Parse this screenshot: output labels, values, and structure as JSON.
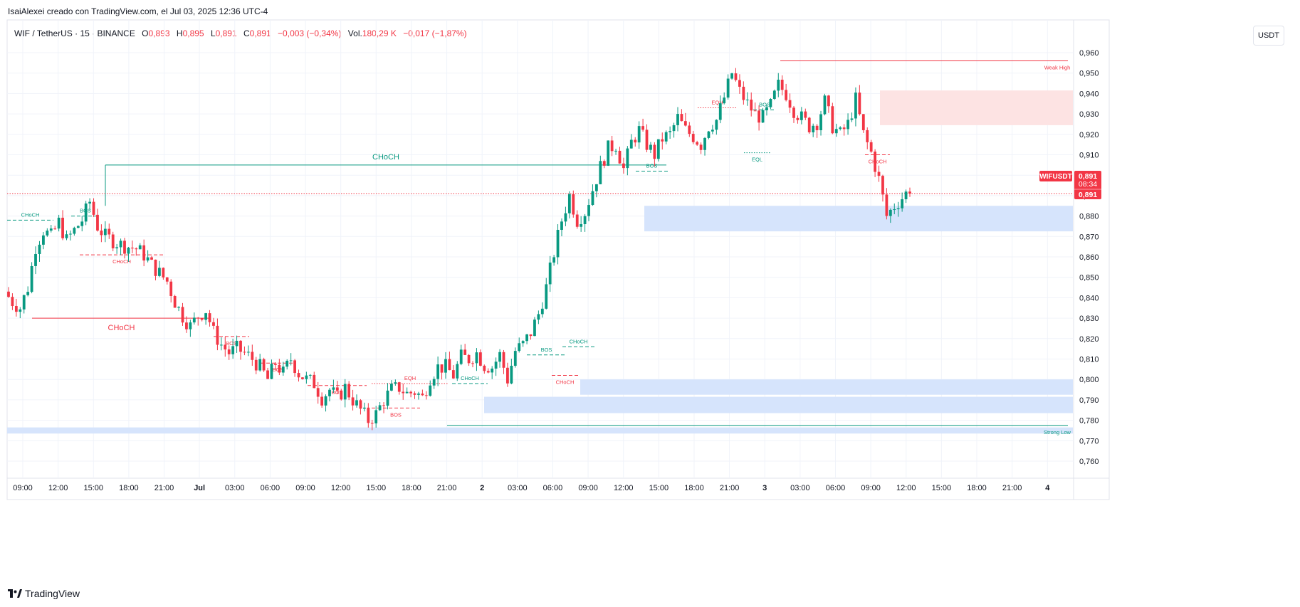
{
  "attribution": "IsaiAlexei creado con TradingView.com, el Jul 03, 2025 12:36 UTC-4",
  "legend": {
    "symbol": "WIF / TetherUS · 15 · BINANCE",
    "open_label": "O",
    "open": "0,893",
    "high_label": "H",
    "high": "0,895",
    "low_label": "L",
    "low": "0,891",
    "close_label": "C",
    "close": "0,891",
    "change": "−0,003 (−0,34%)",
    "vol_label": "Vol.",
    "vol": "180,29 K",
    "vol_change": "−0,017 (−1,87%)"
  },
  "unit_button": "USDT",
  "brand": "TradingView",
  "price_tag": {
    "symbol": "WIFUSDT",
    "price": "0,891",
    "countdown": "08:34",
    "price2": "0,891"
  },
  "colors": {
    "up": "#089981",
    "down": "#f23645",
    "demand": "#d6e4fc",
    "supply": "#fde3e3",
    "grid": "#f0f3fa"
  },
  "chart_data": {
    "type": "candlestick",
    "y_axis": {
      "min": 0.755,
      "max": 0.965,
      "ticks": [
        "0,760",
        "0,770",
        "0,780",
        "0,790",
        "0,800",
        "0,810",
        "0,820",
        "0,830",
        "0,840",
        "0,850",
        "0,860",
        "0,870",
        "0,880",
        "0,890",
        "0,900",
        "0,910",
        "0,920",
        "0,930",
        "0,940",
        "0,950",
        "0,960"
      ]
    },
    "x_axis": {
      "labels": [
        "09:00",
        "12:00",
        "15:00",
        "18:00",
        "21:00",
        "Jul",
        "03:00",
        "06:00",
        "09:00",
        "12:00",
        "15:00",
        "18:00",
        "21:00",
        "2",
        "03:00",
        "06:00",
        "09:00",
        "12:00",
        "15:00",
        "18:00",
        "21:00",
        "3",
        "03:00",
        "06:00",
        "09:00",
        "12:00",
        "15:00",
        "18:00",
        "21:00",
        "4"
      ]
    },
    "price_path": [
      [
        0,
        0.843
      ],
      [
        2,
        0.838
      ],
      [
        4,
        0.835
      ],
      [
        6,
        0.845
      ],
      [
        8,
        0.865
      ],
      [
        10,
        0.873
      ],
      [
        12,
        0.87
      ],
      [
        14,
        0.877
      ],
      [
        16,
        0.868
      ],
      [
        18,
        0.873
      ],
      [
        20,
        0.878
      ],
      [
        22,
        0.887
      ],
      [
        24,
        0.875
      ],
      [
        26,
        0.87
      ],
      [
        28,
        0.868
      ],
      [
        30,
        0.866
      ],
      [
        32,
        0.865
      ],
      [
        34,
        0.864
      ],
      [
        36,
        0.861
      ],
      [
        38,
        0.856
      ],
      [
        40,
        0.852
      ],
      [
        42,
        0.848
      ],
      [
        44,
        0.838
      ],
      [
        46,
        0.831
      ],
      [
        48,
        0.826
      ],
      [
        50,
        0.831
      ],
      [
        52,
        0.834
      ],
      [
        54,
        0.823
      ],
      [
        56,
        0.817
      ],
      [
        58,
        0.813
      ],
      [
        60,
        0.815
      ],
      [
        62,
        0.813
      ],
      [
        64,
        0.81
      ],
      [
        66,
        0.806
      ],
      [
        68,
        0.8
      ],
      [
        70,
        0.808
      ],
      [
        72,
        0.803
      ],
      [
        74,
        0.81
      ],
      [
        76,
        0.803
      ],
      [
        78,
        0.8
      ],
      [
        80,
        0.798
      ],
      [
        82,
        0.791
      ],
      [
        84,
        0.795
      ],
      [
        86,
        0.791
      ],
      [
        88,
        0.796
      ],
      [
        90,
        0.79
      ],
      [
        92,
        0.785
      ],
      [
        94,
        0.78
      ],
      [
        96,
        0.783
      ],
      [
        98,
        0.79
      ],
      [
        100,
        0.795
      ],
      [
        102,
        0.796
      ],
      [
        104,
        0.793
      ],
      [
        106,
        0.794
      ],
      [
        108,
        0.791
      ],
      [
        110,
        0.801
      ],
      [
        112,
        0.806
      ],
      [
        114,
        0.806
      ],
      [
        116,
        0.802
      ],
      [
        118,
        0.811
      ],
      [
        120,
        0.81
      ],
      [
        122,
        0.813
      ],
      [
        124,
        0.807
      ],
      [
        126,
        0.806
      ],
      [
        128,
        0.812
      ],
      [
        130,
        0.8
      ],
      [
        132,
        0.814
      ],
      [
        134,
        0.817
      ],
      [
        136,
        0.823
      ],
      [
        138,
        0.832
      ],
      [
        140,
        0.845
      ],
      [
        142,
        0.862
      ],
      [
        144,
        0.878
      ],
      [
        146,
        0.89
      ],
      [
        148,
        0.878
      ],
      [
        150,
        0.882
      ],
      [
        152,
        0.893
      ],
      [
        154,
        0.904
      ],
      [
        156,
        0.913
      ],
      [
        158,
        0.915
      ],
      [
        160,
        0.903
      ],
      [
        162,
        0.916
      ],
      [
        164,
        0.922
      ],
      [
        166,
        0.915
      ],
      [
        168,
        0.91
      ],
      [
        170,
        0.918
      ],
      [
        172,
        0.92
      ],
      [
        174,
        0.928
      ],
      [
        176,
        0.922
      ],
      [
        178,
        0.919
      ],
      [
        180,
        0.915
      ],
      [
        182,
        0.924
      ],
      [
        184,
        0.927
      ],
      [
        186,
        0.938
      ],
      [
        188,
        0.95
      ],
      [
        190,
        0.941
      ],
      [
        192,
        0.935
      ],
      [
        194,
        0.93
      ],
      [
        196,
        0.928
      ],
      [
        198,
        0.934
      ],
      [
        200,
        0.944
      ],
      [
        202,
        0.94
      ],
      [
        204,
        0.932
      ],
      [
        206,
        0.928
      ],
      [
        208,
        0.924
      ],
      [
        210,
        0.926
      ],
      [
        212,
        0.936
      ],
      [
        214,
        0.924
      ],
      [
        216,
        0.92
      ],
      [
        218,
        0.925
      ],
      [
        220,
        0.937
      ],
      [
        222,
        0.92
      ],
      [
        224,
        0.911
      ],
      [
        226,
        0.898
      ],
      [
        228,
        0.88
      ],
      [
        230,
        0.885
      ],
      [
        232,
        0.889
      ],
      [
        233,
        0.891
      ]
    ],
    "structures": [
      {
        "label": "CHoCH",
        "price": 0.905,
        "color": "up",
        "style": "solid",
        "x1": 148,
        "x2": 936,
        "label_size": "big"
      },
      {
        "label": "CHoCH",
        "price": 0.83,
        "color": "down",
        "style": "solid",
        "x1": 45,
        "x2": 296,
        "label_size": "big"
      },
      {
        "label": "CHoCH",
        "price": 0.878,
        "color": "up",
        "style": "dash",
        "x1": 10,
        "x2": 75,
        "label_size": "small"
      },
      {
        "label": "BOS",
        "price": 0.88,
        "color": "up",
        "style": "dash",
        "x1": 100,
        "x2": 140,
        "label_size": "small"
      },
      {
        "label": "CHoCH",
        "price": 0.861,
        "color": "down",
        "style": "dash",
        "x1": 112,
        "x2": 230,
        "label_size": "small"
      },
      {
        "label": "BOS",
        "price": 0.821,
        "color": "down",
        "style": "dash",
        "x1": 300,
        "x2": 350,
        "label_size": "small"
      },
      {
        "label": "BOS",
        "price": 0.808,
        "color": "down",
        "style": "dash",
        "x1": 366,
        "x2": 415,
        "label_size": "small"
      },
      {
        "label": "BOS",
        "price": 0.797,
        "color": "down",
        "style": "dash",
        "x1": 432,
        "x2": 515,
        "label_size": "small"
      },
      {
        "label": "EQH",
        "price": 0.798,
        "color": "down",
        "style": "dot",
        "x1": 522,
        "x2": 630,
        "label_size": "small"
      },
      {
        "label": "BOS",
        "price": 0.786,
        "color": "down",
        "style": "dash",
        "x1": 522,
        "x2": 590,
        "label_size": "small"
      },
      {
        "label": "CHoCH",
        "price": 0.798,
        "color": "up",
        "style": "dash",
        "x1": 635,
        "x2": 685,
        "label_size": "small"
      },
      {
        "label": "BOS",
        "price": 0.812,
        "color": "up",
        "style": "dash",
        "x1": 740,
        "x2": 795,
        "label_size": "small"
      },
      {
        "label": "CHoCH",
        "price": 0.816,
        "color": "up",
        "style": "dash",
        "x1": 790,
        "x2": 835,
        "label_size": "small"
      },
      {
        "label": "CHoCH",
        "price": 0.802,
        "color": "down",
        "style": "dash",
        "x1": 775,
        "x2": 812,
        "label_size": "small"
      },
      {
        "label": "BOS",
        "price": 0.902,
        "color": "up",
        "style": "dash",
        "x1": 893,
        "x2": 938,
        "label_size": "small"
      },
      {
        "label": "EQH",
        "price": 0.933,
        "color": "down",
        "style": "dot",
        "x1": 980,
        "x2": 1035,
        "label_size": "small"
      },
      {
        "label": "BOS",
        "price": 0.932,
        "color": "up",
        "style": "dash",
        "x1": 1058,
        "x2": 1090,
        "label_size": "small"
      },
      {
        "label": "EQL",
        "price": 0.911,
        "color": "up",
        "style": "dot",
        "x1": 1045,
        "x2": 1082,
        "label_size": "small"
      },
      {
        "label": "CHoCH",
        "price": 0.91,
        "color": "down",
        "style": "dash",
        "x1": 1215,
        "x2": 1250,
        "label_size": "small"
      },
      {
        "label": "Weak High",
        "price": 0.956,
        "color": "down",
        "style": "solid",
        "x1": 1096,
        "x2": 1500,
        "label_size": "small"
      },
      {
        "label": "Strong Low",
        "price": 0.7775,
        "color": "up",
        "style": "solid",
        "x1": 628,
        "x2": 1500,
        "label_size": "small"
      }
    ],
    "zones": [
      {
        "type": "supply",
        "top": 0.9415,
        "bottom": 0.9245,
        "x1": 1236,
        "x2": 1507
      },
      {
        "type": "demand",
        "top": 0.885,
        "bottom": 0.8725,
        "x1": 905,
        "x2": 1507
      },
      {
        "type": "demand",
        "top": 0.8,
        "bottom": 0.7925,
        "x1": 815,
        "x2": 1507
      },
      {
        "type": "demand",
        "top": 0.7915,
        "bottom": 0.7835,
        "x1": 680,
        "x2": 1507
      },
      {
        "type": "demand",
        "top": 0.7765,
        "bottom": 0.7735,
        "x1": 10,
        "x2": 1507
      }
    ],
    "last_price": 0.891
  }
}
